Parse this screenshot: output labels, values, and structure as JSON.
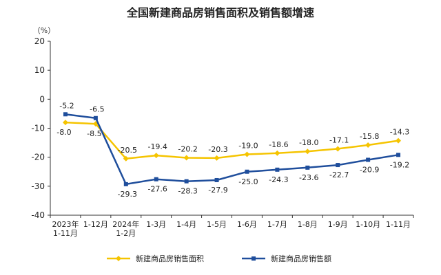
{
  "chart_data": {
    "type": "line",
    "title": "全国新建商品房销售面积及销售额增速",
    "unit_label": "（%）",
    "ylim": [
      -40,
      20
    ],
    "yticks": [
      20,
      10,
      0,
      -10,
      -20,
      -30,
      -40
    ],
    "grid": false,
    "legend_position": "bottom",
    "categories": [
      [
        "2023年",
        "1-11月"
      ],
      [
        "1-12月"
      ],
      [
        "2024年",
        "1-2月"
      ],
      [
        "1-3月"
      ],
      [
        "1-4月"
      ],
      [
        "1-5月"
      ],
      [
        "1-6月"
      ],
      [
        "1-7月"
      ],
      [
        "1-8月"
      ],
      [
        "1-9月"
      ],
      [
        "1-10月"
      ],
      [
        "1-11月"
      ]
    ],
    "series": [
      {
        "name": "新建商品房销售面积",
        "color": "#f5c400",
        "marker": "diamond",
        "values": [
          -8.0,
          -8.5,
          -20.5,
          -19.4,
          -20.2,
          -20.3,
          -19.0,
          -18.6,
          -18.0,
          -17.1,
          -15.8,
          -14.3
        ],
        "labels": [
          "-8.0",
          "-8.5",
          "-20.5",
          "-19.4",
          "-20.2",
          "-20.3",
          "-19.0",
          "-18.6",
          "-18.0",
          "-17.1",
          "-15.8",
          "-14.3"
        ]
      },
      {
        "name": "新建商品房销售额",
        "color": "#1f4e9c",
        "marker": "square",
        "values": [
          -5.2,
          -6.5,
          -29.3,
          -27.6,
          -28.3,
          -27.9,
          -25.0,
          -24.3,
          -23.6,
          -22.7,
          -20.9,
          -19.2
        ],
        "labels": [
          "-5.2",
          "-6.5",
          "-29.3",
          "-27.6",
          "-28.3",
          "-27.9",
          "-25.0",
          "-24.3",
          "-23.6",
          "-22.7",
          "-20.9",
          "-19.2"
        ]
      }
    ]
  }
}
